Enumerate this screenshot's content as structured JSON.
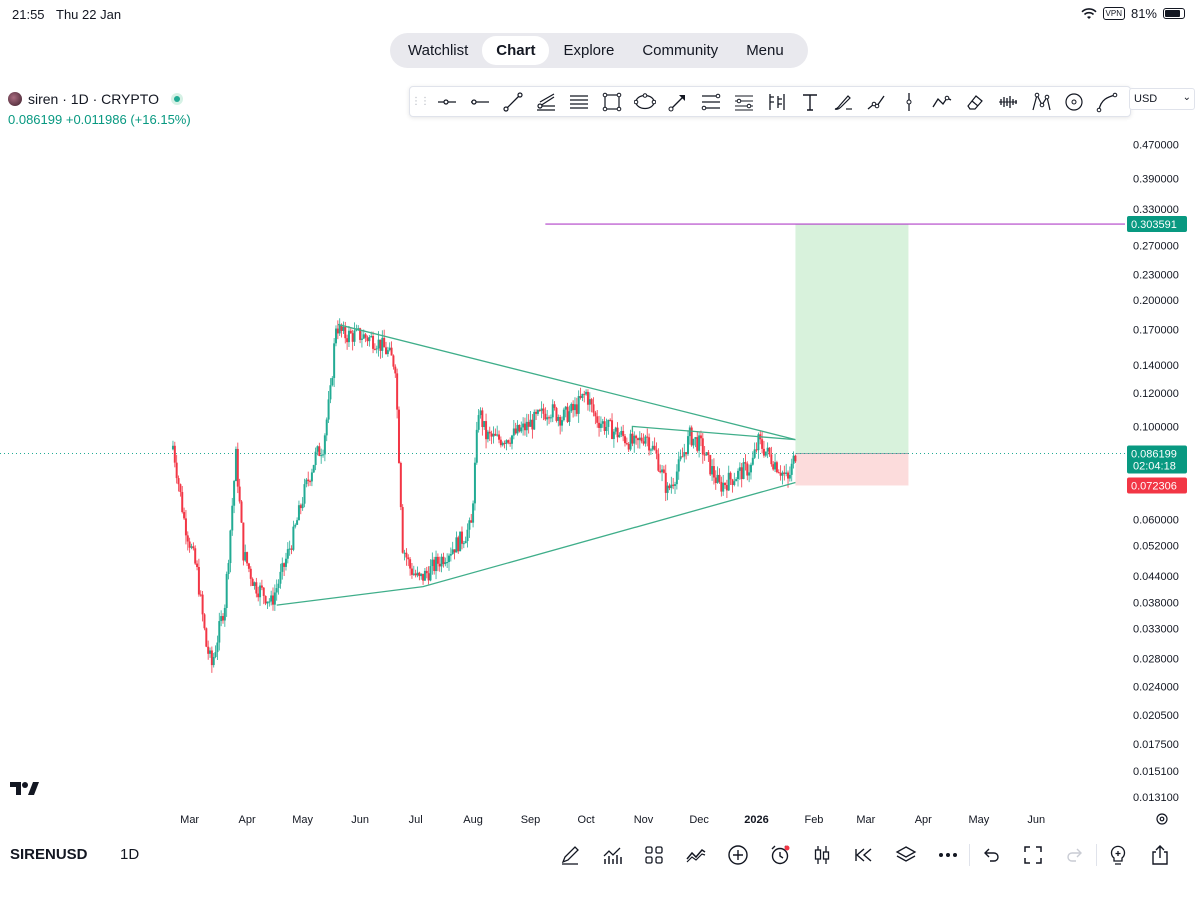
{
  "status": {
    "time": "21:55",
    "date": "Thu 22 Jan",
    "vpn": "VPN",
    "battery": "81%"
  },
  "nav": {
    "tabs": [
      "Watchlist",
      "Chart",
      "Explore",
      "Community",
      "Menu"
    ],
    "active": "Chart"
  },
  "symbol": {
    "title": "siren · 1D · CRYPTO",
    "price": "0.086199",
    "change": "+0.011986",
    "change_pct": "(+16.15%)"
  },
  "currency": "USD",
  "toolbar_icons": [
    "horizontal-ray",
    "horizontal-line",
    "trend-line",
    "pitchfork",
    "parallel-channel",
    "rectangle",
    "ellipse",
    "arrow",
    "fib-retracement",
    "fib-extension",
    "long-position",
    "text",
    "brush",
    "path",
    "vertical-line",
    "polyline",
    "eraser",
    "forecast",
    "xabcd-pattern",
    "circle",
    "curve"
  ],
  "price_axis": {
    "ticks": [
      "0.470000",
      "0.390000",
      "0.330000",
      "0.270000",
      "0.230000",
      "0.200000",
      "0.170000",
      "0.140000",
      "0.120000",
      "0.100000",
      "0.060000",
      "0.052000",
      "0.044000",
      "0.038000",
      "0.033000",
      "0.028000",
      "0.024000",
      "0.020500",
      "0.017500",
      "0.015100",
      "0.013100"
    ],
    "labels": {
      "target": "0.303591",
      "current": "0.086199",
      "countdown": "02:04:18",
      "stop": "0.072306"
    }
  },
  "time_axis": {
    "labels": [
      "Mar",
      "Apr",
      "May",
      "Jun",
      "Jul",
      "Aug",
      "Sep",
      "Oct",
      "Nov",
      "Dec",
      "2026",
      "Feb",
      "Mar",
      "Apr",
      "May",
      "Jun"
    ]
  },
  "colors": {
    "up": "#22ab94",
    "down": "#f23645",
    "trend": "#3fae8a",
    "target_line": "#b040c8",
    "profit_zone": "#d8f2dc",
    "loss_zone": "#fcdcdc",
    "label_green": "#089981",
    "label_red": "#f23645"
  },
  "chart_data": {
    "type": "candlestick",
    "symbol": "SIRENUSD",
    "interval": "1D",
    "y_scale": "log",
    "ylim": [
      0.0128,
      0.52
    ],
    "x_range": [
      "2025-02-13",
      "2026-06-30"
    ],
    "close_path": [
      [
        "2025-02-20",
        0.09
      ],
      [
        "2025-02-26",
        0.06
      ],
      [
        "2025-03-05",
        0.045
      ],
      [
        "2025-03-10",
        0.03
      ],
      [
        "2025-03-13",
        0.027
      ],
      [
        "2025-03-20",
        0.038
      ],
      [
        "2025-03-26",
        0.085
      ],
      [
        "2025-03-30",
        0.05
      ],
      [
        "2025-04-05",
        0.042
      ],
      [
        "2025-04-10",
        0.04
      ],
      [
        "2025-04-14",
        0.038
      ],
      [
        "2025-04-20",
        0.045
      ],
      [
        "2025-04-26",
        0.055
      ],
      [
        "2025-05-02",
        0.07
      ],
      [
        "2025-05-08",
        0.085
      ],
      [
        "2025-05-12",
        0.09
      ],
      [
        "2025-05-16",
        0.12
      ],
      [
        "2025-05-19",
        0.175
      ],
      [
        "2025-05-23",
        0.165
      ],
      [
        "2025-06-01",
        0.165
      ],
      [
        "2025-06-10",
        0.16
      ],
      [
        "2025-06-16",
        0.15
      ],
      [
        "2025-06-20",
        0.14
      ],
      [
        "2025-06-24",
        0.052
      ],
      [
        "2025-06-28",
        0.046
      ],
      [
        "2025-07-03",
        0.043
      ],
      [
        "2025-07-10",
        0.046
      ],
      [
        "2025-07-18",
        0.05
      ],
      [
        "2025-07-26",
        0.054
      ],
      [
        "2025-07-31",
        0.058
      ],
      [
        "2025-08-04",
        0.11
      ],
      [
        "2025-08-08",
        0.095
      ],
      [
        "2025-08-14",
        0.093
      ],
      [
        "2025-08-22",
        0.095
      ],
      [
        "2025-08-30",
        0.1
      ],
      [
        "2025-09-05",
        0.105
      ],
      [
        "2025-09-11",
        0.11
      ],
      [
        "2025-09-18",
        0.105
      ],
      [
        "2025-09-25",
        0.11
      ],
      [
        "2025-10-01",
        0.12
      ],
      [
        "2025-10-06",
        0.105
      ],
      [
        "2025-10-12",
        0.1
      ],
      [
        "2025-10-20",
        0.095
      ],
      [
        "2025-10-28",
        0.09
      ],
      [
        "2025-11-02",
        0.096
      ],
      [
        "2025-11-08",
        0.085
      ],
      [
        "2025-11-14",
        0.07
      ],
      [
        "2025-11-20",
        0.08
      ],
      [
        "2025-11-26",
        0.095
      ],
      [
        "2025-12-02",
        0.09
      ],
      [
        "2025-12-07",
        0.08
      ],
      [
        "2025-12-12",
        0.072
      ],
      [
        "2025-12-18",
        0.075
      ],
      [
        "2025-12-24",
        0.078
      ],
      [
        "2025-12-29",
        0.08
      ],
      [
        "2026-01-02",
        0.092
      ],
      [
        "2026-01-08",
        0.085
      ],
      [
        "2026-01-13",
        0.08
      ],
      [
        "2026-01-18",
        0.074
      ],
      [
        "2026-01-22",
        0.0862
      ]
    ],
    "last_price": 0.086199,
    "trendlines": {
      "upper": [
        [
          "2025-05-20",
          0.175
        ],
        [
          "2026-01-22",
          0.093
        ]
      ],
      "lower": [
        [
          "2025-04-17",
          0.0375
        ],
        [
          "2025-07-05",
          0.0415
        ],
        [
          "2026-01-22",
          0.0735
        ]
      ],
      "box_top": [
        [
          "2025-10-26",
          0.1
        ],
        [
          "2026-01-22",
          0.093
        ]
      ]
    },
    "long_position": {
      "start": "2026-01-22",
      "end": "2026-03-24",
      "entry": 0.086199,
      "target": 0.303591,
      "stop": 0.072306
    },
    "target_line": {
      "from": "2025-09-09",
      "price": 0.303591
    }
  }
}
